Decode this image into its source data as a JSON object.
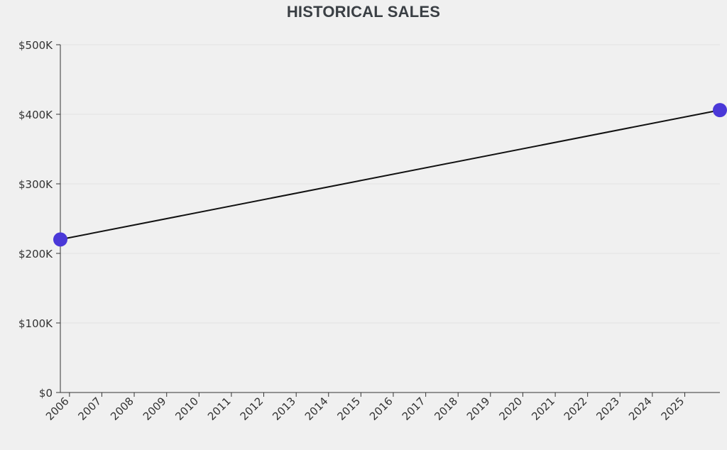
{
  "chart_data": {
    "type": "line",
    "title": "HISTORICAL SALES",
    "xlabel": "",
    "ylabel": "",
    "x_ticks": [
      "2006",
      "2007",
      "2008",
      "2009",
      "2010",
      "2011",
      "2012",
      "2013",
      "2014",
      "2015",
      "2016",
      "2017",
      "2018",
      "2019",
      "2020",
      "2021",
      "2022",
      "2023",
      "2024",
      "2025"
    ],
    "y_ticks": [
      "$0",
      "$100K",
      "$200K",
      "$300K",
      "$400K",
      "$500K"
    ],
    "ylim": [
      0,
      500000
    ],
    "xlim": [
      "2005-09-20",
      "2026-02-01"
    ],
    "series": [
      {
        "points": [
          {
            "x": "2005-09-20",
            "y": 220000
          },
          {
            "x": "2026-02-01",
            "y": 406000
          }
        ]
      }
    ],
    "grid": "horizontal",
    "colors": {
      "line": "#111111",
      "marker": "#4a38d8",
      "grid": "#e2e2e2",
      "axis": "#333333",
      "title": "#3a3f44"
    }
  }
}
